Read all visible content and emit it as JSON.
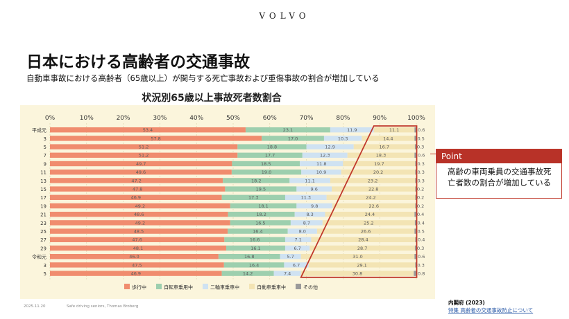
{
  "brand": "VOLVO",
  "title": "日本における高齢者の交通事故",
  "subtitle": "自動車事故における高齢者（65歳以上）が関与する死亡事故および重傷事故の割合が増加している",
  "point": {
    "label": "Point",
    "text": "高齢の車両乗員の交通事故死亡者数の割合が増加している"
  },
  "footer": {
    "date": "2025.11.20",
    "note": "Safe driving seniors, Thomas Broberg"
  },
  "source": {
    "title": "内閣府 (2023)",
    "link": "特集 高齢者の交通事故防止について"
  },
  "colors": {
    "pedestrian": "#f08c6e",
    "bicycle": "#9dcfae",
    "motorcycle": "#cfe2f2",
    "car": "#f3e4b4",
    "other": "#9a9a9a",
    "highlight": "#c0392b",
    "plot_bg": "#fbf5dc"
  },
  "chart_data": {
    "type": "bar",
    "orientation": "horizontal",
    "stacked": true,
    "title": "状況別65歳以上事故死者数割合",
    "xlim": [
      0,
      100
    ],
    "x_ticks": [
      "0%",
      "10%",
      "20%",
      "30%",
      "40%",
      "50%",
      "60%",
      "70%",
      "80%",
      "90%",
      "100%"
    ],
    "categories": [
      "平成元",
      "3",
      "5",
      "7",
      "9",
      "11",
      "13",
      "15",
      "17",
      "19",
      "21",
      "23",
      "25",
      "27",
      "29",
      "令和元",
      "3",
      "5"
    ],
    "series": [
      {
        "name": "歩行中",
        "values": [
          53.4,
          57.8,
          51.2,
          51.2,
          49.7,
          49.6,
          47.2,
          47.8,
          46.9,
          49.2,
          48.6,
          49.2,
          48.5,
          47.6,
          48.1,
          46.0,
          47.5,
          46.9
        ]
      },
      {
        "name": "自転車乗用中",
        "values": [
          23.1,
          17.0,
          18.8,
          17.7,
          18.5,
          19.0,
          18.2,
          19.5,
          17.3,
          18.1,
          18.2,
          16.5,
          16.4,
          16.6,
          16.1,
          16.8,
          16.4,
          14.2
        ]
      },
      {
        "name": "二輪車乗車中",
        "values": [
          11.9,
          10.3,
          12.9,
          12.3,
          11.8,
          10.9,
          11.1,
          9.6,
          11.3,
          9.8,
          8.3,
          8.7,
          8.0,
          7.1,
          6.7,
          5.7,
          6.7,
          7.4
        ]
      },
      {
        "name": "自動車乗車中",
        "values": [
          11.1,
          14.4,
          16.7,
          18.3,
          19.7,
          20.2,
          23.2,
          22.8,
          24.2,
          22.6,
          24.4,
          25.2,
          26.6,
          28.4,
          28.7,
          31.0,
          29.1,
          30.8
        ]
      },
      {
        "name": "その他",
        "values": [
          0.6,
          0.5,
          0.3,
          0.6,
          0.3,
          0.3,
          0.3,
          0.2,
          0.2,
          0.2,
          0.4,
          0.4,
          0.5,
          0.4,
          0.3,
          0.6,
          0.3,
          0.8
        ]
      }
    ],
    "grid": true,
    "legend": "bottom"
  }
}
